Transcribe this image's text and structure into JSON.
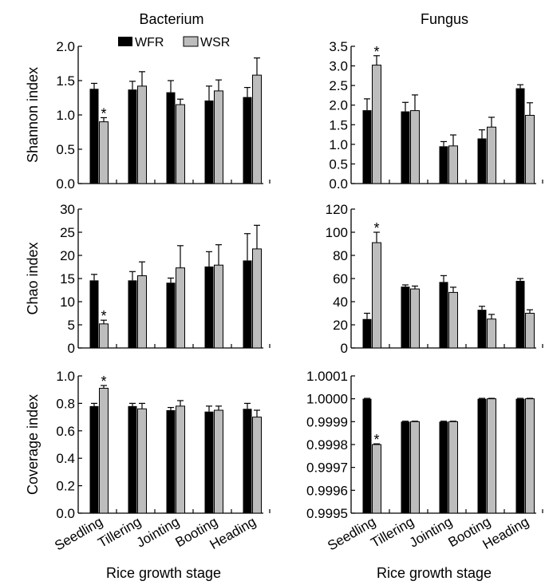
{
  "columns": [
    "Bacterium",
    "Fungus"
  ],
  "xlabel": "Rice growth stage",
  "legend": [
    {
      "name": "WFR",
      "color": "#000000"
    },
    {
      "name": "WSR",
      "color": "#bdbdbd"
    }
  ],
  "colors": {
    "WFR": "#000000",
    "WSR": "#bdbdbd",
    "axis": "#000000"
  },
  "chart_data": [
    {
      "type": "bar",
      "column": "Bacterium",
      "ylabel": "Shannon index",
      "categories": [
        "Seedling",
        "Tillering",
        "Jointing",
        "Booting",
        "Heading"
      ],
      "ylim": [
        0,
        2.0
      ],
      "yticks": [
        "0.0",
        "0.5",
        "1.0",
        "1.5",
        "2.0"
      ],
      "grid": false,
      "legend_position": "top",
      "series": [
        {
          "name": "WFR",
          "values": [
            1.38,
            1.37,
            1.33,
            1.21,
            1.26
          ],
          "errors": [
            0.08,
            0.12,
            0.17,
            0.21,
            0.14
          ]
        },
        {
          "name": "WSR",
          "values": [
            0.9,
            1.42,
            1.15,
            1.35,
            1.58
          ],
          "errors": [
            0.06,
            0.21,
            0.08,
            0.16,
            0.25
          ]
        }
      ],
      "significant": [
        {
          "series": "WSR",
          "category": "Seedling",
          "mark": "*"
        }
      ]
    },
    {
      "type": "bar",
      "column": "Fungus",
      "ylabel": "",
      "categories": [
        "Seedling",
        "Tillering",
        "Jointing",
        "Booting",
        "Heading"
      ],
      "ylim": [
        0,
        3.5
      ],
      "yticks": [
        "0.0",
        "0.5",
        "1.0",
        "1.5",
        "2.0",
        "2.5",
        "3.0",
        "3.5"
      ],
      "grid": false,
      "series": [
        {
          "name": "WFR",
          "values": [
            1.87,
            1.84,
            0.95,
            1.15,
            2.43
          ],
          "errors": [
            0.29,
            0.23,
            0.12,
            0.22,
            0.09
          ]
        },
        {
          "name": "WSR",
          "values": [
            3.02,
            1.86,
            0.96,
            1.44,
            1.74
          ],
          "errors": [
            0.24,
            0.4,
            0.28,
            0.25,
            0.32
          ]
        }
      ],
      "significant": [
        {
          "series": "WSR",
          "category": "Seedling",
          "mark": "*"
        }
      ]
    },
    {
      "type": "bar",
      "column": "Bacterium",
      "ylabel": "Chao index",
      "categories": [
        "Seedling",
        "Tillering",
        "Jointing",
        "Booting",
        "Heading"
      ],
      "ylim": [
        0,
        30
      ],
      "yticks": [
        "0",
        "5",
        "10",
        "15",
        "20",
        "25",
        "30"
      ],
      "grid": false,
      "series": [
        {
          "name": "WFR",
          "values": [
            14.6,
            14.6,
            14.1,
            17.6,
            18.9
          ],
          "errors": [
            1.3,
            1.9,
            1.0,
            3.2,
            5.8
          ]
        },
        {
          "name": "WSR",
          "values": [
            5.2,
            15.6,
            17.3,
            17.9,
            21.4
          ],
          "errors": [
            0.8,
            3.0,
            4.8,
            4.4,
            5.1
          ]
        }
      ],
      "significant": [
        {
          "series": "WSR",
          "category": "Seedling",
          "mark": "*"
        }
      ]
    },
    {
      "type": "bar",
      "column": "Fungus",
      "ylabel": "",
      "categories": [
        "Seedling",
        "Tillering",
        "Jointing",
        "Booting",
        "Heading"
      ],
      "ylim": [
        0,
        120
      ],
      "yticks": [
        "0",
        "20",
        "40",
        "60",
        "80",
        "100",
        "120"
      ],
      "grid": false,
      "series": [
        {
          "name": "WFR",
          "values": [
            25,
            53,
            57,
            33,
            58
          ],
          "errors": [
            5,
            1.5,
            5.5,
            3,
            2
          ]
        },
        {
          "name": "WSR",
          "values": [
            91,
            51,
            48,
            25,
            30
          ],
          "errors": [
            9,
            2.5,
            4.5,
            4,
            3
          ]
        }
      ],
      "significant": [
        {
          "series": "WSR",
          "category": "Seedling",
          "mark": "*"
        }
      ]
    },
    {
      "type": "bar",
      "column": "Bacterium",
      "ylabel": "Coverage index",
      "categories": [
        "Seedling",
        "Tillering",
        "Jointing",
        "Booting",
        "Heading"
      ],
      "ylim": [
        0,
        1.0
      ],
      "yticks": [
        "0.0",
        "0.2",
        "0.4",
        "0.6",
        "0.8",
        "1.0"
      ],
      "grid": false,
      "series": [
        {
          "name": "WFR",
          "values": [
            0.78,
            0.78,
            0.75,
            0.74,
            0.76
          ],
          "errors": [
            0.02,
            0.02,
            0.02,
            0.04,
            0.04
          ]
        },
        {
          "name": "WSR",
          "values": [
            0.91,
            0.76,
            0.78,
            0.75,
            0.7
          ],
          "errors": [
            0.02,
            0.04,
            0.04,
            0.03,
            0.05
          ]
        }
      ],
      "significant": [
        {
          "series": "WSR",
          "category": "Seedling",
          "mark": "*"
        }
      ]
    },
    {
      "type": "bar",
      "column": "Fungus",
      "ylabel": "",
      "categories": [
        "Seedling",
        "Tillering",
        "Jointing",
        "Booting",
        "Heading"
      ],
      "ylim": [
        0.9995,
        1.0001
      ],
      "yticks": [
        "0.9995",
        "0.9996",
        "0.9997",
        "0.9998",
        "0.9999",
        "1.0000",
        "1.0001"
      ],
      "grid": false,
      "series": [
        {
          "name": "WFR",
          "values": [
            1.0,
            0.9999,
            0.9999,
            1.0,
            1.0
          ],
          "errors": [
            2e-06,
            2e-06,
            2e-06,
            2e-06,
            2e-06
          ]
        },
        {
          "name": "WSR",
          "values": [
            0.9998,
            0.9999,
            0.9999,
            1.0,
            1.0
          ],
          "errors": [
            3e-06,
            2e-06,
            2e-06,
            2e-06,
            2e-06
          ]
        }
      ],
      "significant": [
        {
          "series": "WSR",
          "category": "Seedling",
          "mark": "*"
        }
      ]
    }
  ]
}
